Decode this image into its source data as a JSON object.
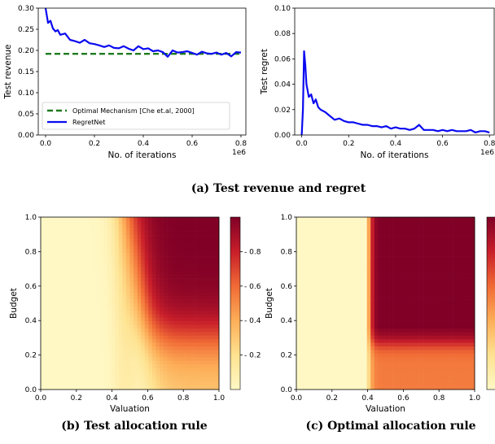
{
  "captions": {
    "a": "(a) Test revenue and regret",
    "b": "(b) Test allocation rule",
    "c": "(c) Optimal allocation rule"
  },
  "colors": {
    "regretnet": "#0a0af0",
    "optimal": "#1e7a1e",
    "heat_low": "#fff8c5",
    "heat_high": "#800026"
  },
  "chart_data": [
    {
      "id": "revenue",
      "type": "line",
      "xlabel": "No. of iterations",
      "ylabel": "Test revenue",
      "x_multiplier_label": "1e6",
      "xlim": [
        -0.03,
        0.82
      ],
      "ylim": [
        0.0,
        0.3
      ],
      "x_ticks": [
        "0.0",
        "0.2",
        "0.4",
        "0.6",
        "0.8"
      ],
      "y_ticks": [
        "0.00",
        "0.05",
        "0.10",
        "0.15",
        "0.20",
        "0.25",
        "0.30"
      ],
      "legend": "lower-left",
      "series": [
        {
          "name": "Optimal Mechanism [Che et.al, 2000]",
          "style": "dashed",
          "x": [
            0.0,
            0.8
          ],
          "y": [
            0.192,
            0.192
          ]
        },
        {
          "name": "RegretNet",
          "style": "solid",
          "x": [
            0.0,
            0.01,
            0.02,
            0.03,
            0.04,
            0.05,
            0.06,
            0.08,
            0.1,
            0.12,
            0.14,
            0.16,
            0.18,
            0.2,
            0.22,
            0.24,
            0.26,
            0.28,
            0.3,
            0.32,
            0.34,
            0.36,
            0.38,
            0.4,
            0.42,
            0.44,
            0.46,
            0.48,
            0.5,
            0.52,
            0.54,
            0.56,
            0.58,
            0.6,
            0.62,
            0.64,
            0.66,
            0.68,
            0.7,
            0.72,
            0.74,
            0.76,
            0.78,
            0.8
          ],
          "y": [
            0.3,
            0.265,
            0.27,
            0.252,
            0.245,
            0.248,
            0.237,
            0.24,
            0.225,
            0.222,
            0.218,
            0.225,
            0.217,
            0.215,
            0.212,
            0.208,
            0.212,
            0.206,
            0.205,
            0.21,
            0.204,
            0.2,
            0.21,
            0.203,
            0.205,
            0.198,
            0.2,
            0.196,
            0.185,
            0.2,
            0.195,
            0.196,
            0.198,
            0.194,
            0.19,
            0.197,
            0.193,
            0.192,
            0.195,
            0.19,
            0.194,
            0.186,
            0.196,
            0.195
          ]
        }
      ]
    },
    {
      "id": "regret",
      "type": "line",
      "xlabel": "No. of iterations",
      "ylabel": "Test regret",
      "x_multiplier_label": "1e6",
      "xlim": [
        -0.03,
        0.82
      ],
      "ylim": [
        0.0,
        0.1
      ],
      "x_ticks": [
        "0.0",
        "0.2",
        "0.4",
        "0.6",
        "0.8"
      ],
      "y_ticks": [
        "0.00",
        "0.02",
        "0.04",
        "0.06",
        "0.08",
        "0.10"
      ],
      "series": [
        {
          "name": "RegretNet",
          "style": "solid",
          "x": [
            0.0,
            0.005,
            0.01,
            0.015,
            0.02,
            0.03,
            0.04,
            0.05,
            0.06,
            0.07,
            0.08,
            0.1,
            0.12,
            0.14,
            0.16,
            0.18,
            0.2,
            0.22,
            0.24,
            0.26,
            0.28,
            0.3,
            0.32,
            0.34,
            0.36,
            0.38,
            0.4,
            0.42,
            0.44,
            0.46,
            0.48,
            0.5,
            0.52,
            0.54,
            0.56,
            0.58,
            0.6,
            0.62,
            0.64,
            0.66,
            0.68,
            0.7,
            0.72,
            0.74,
            0.76,
            0.78,
            0.8
          ],
          "y": [
            0.0,
            0.02,
            0.066,
            0.055,
            0.04,
            0.03,
            0.032,
            0.025,
            0.028,
            0.022,
            0.02,
            0.018,
            0.015,
            0.012,
            0.013,
            0.011,
            0.01,
            0.01,
            0.009,
            0.008,
            0.008,
            0.007,
            0.007,
            0.006,
            0.007,
            0.005,
            0.006,
            0.005,
            0.005,
            0.004,
            0.005,
            0.008,
            0.004,
            0.004,
            0.004,
            0.003,
            0.004,
            0.003,
            0.004,
            0.003,
            0.003,
            0.003,
            0.004,
            0.002,
            0.003,
            0.003,
            0.002
          ]
        }
      ]
    },
    {
      "id": "test-allocation",
      "type": "heatmap",
      "xlabel": "Valuation",
      "ylabel": "Budget",
      "xlim": [
        0.0,
        1.0
      ],
      "ylim": [
        0.0,
        1.0
      ],
      "x_ticks": [
        "0.0",
        "0.2",
        "0.4",
        "0.6",
        "0.8",
        "1.0"
      ],
      "y_ticks": [
        "0.0",
        "0.2",
        "0.4",
        "0.6",
        "0.8",
        "1.0"
      ],
      "colorbar_ticks": [
        "0.2",
        "0.4",
        "0.6",
        "0.8"
      ],
      "colorbar_range": [
        0.0,
        1.0
      ],
      "description_rule": "smooth"
    },
    {
      "id": "optimal-allocation",
      "type": "heatmap",
      "xlabel": "Valuation",
      "ylabel": "Budget",
      "xlim": [
        0.0,
        1.0
      ],
      "ylim": [
        0.0,
        1.0
      ],
      "x_ticks": [
        "0.0",
        "0.2",
        "0.4",
        "0.6",
        "0.8",
        "1.0"
      ],
      "y_ticks": [
        "0.0",
        "0.2",
        "0.4",
        "0.6",
        "0.8",
        "1.0"
      ],
      "colorbar_range": [
        0.0,
        1.0
      ],
      "description_rule": "sharp"
    }
  ]
}
